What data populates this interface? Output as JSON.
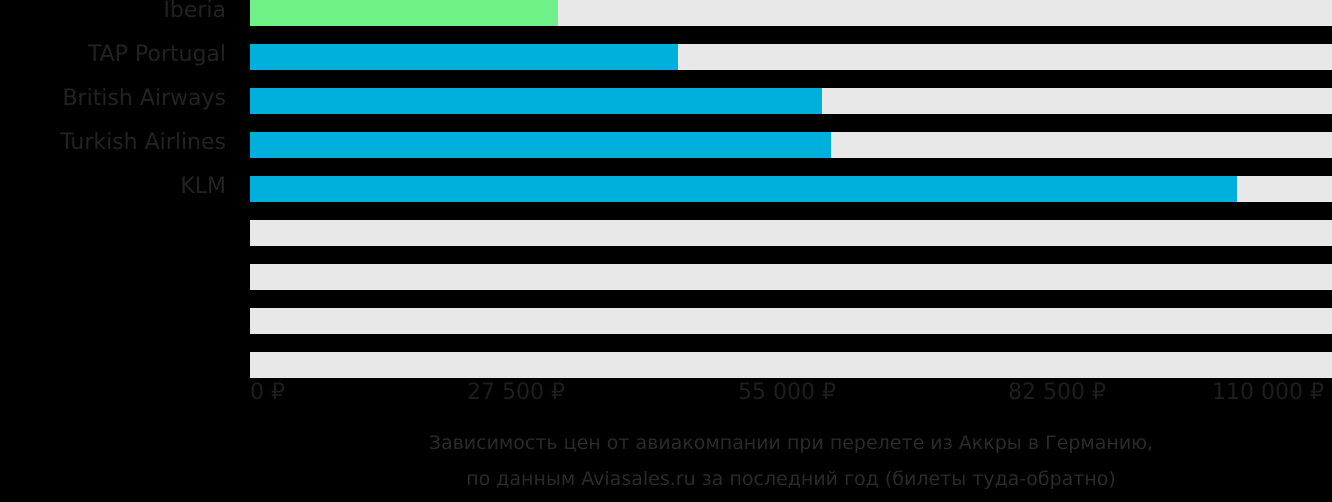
{
  "chart_data": {
    "type": "bar",
    "orientation": "horizontal",
    "categories": [
      "Iberia",
      "TAP Portugal",
      "British Airways",
      "Turkish Airlines",
      "KLM",
      "",
      "",
      "",
      ""
    ],
    "values": [
      31300,
      43500,
      58150,
      59070,
      100340,
      null,
      null,
      null,
      null
    ],
    "highlight_index": 0,
    "colors": {
      "highlight": "#6ef287",
      "default": "#00b0dc",
      "track": "#e8e8e8",
      "background": "#000000"
    },
    "xlim": [
      0,
      110000
    ],
    "xticks": [
      0,
      27500,
      55000,
      82500,
      110000
    ],
    "xtick_labels": [
      "0 ₽",
      "27 500 ₽",
      "55 000 ₽",
      "82 500 ₽",
      "110 000 ₽"
    ],
    "grid": false,
    "legend": null,
    "caption": [
      "Зависимость цен от авиакомпании при перелете из Аккры в Германию,",
      "по данным Aviasales.ru за последний год (билеты туда-обратно)"
    ]
  },
  "rows": [
    {
      "label": "Iberia"
    },
    {
      "label": "TAP Portugal"
    },
    {
      "label": "British Airways"
    },
    {
      "label": "Turkish Airlines"
    },
    {
      "label": "KLM"
    },
    {
      "label": ""
    },
    {
      "label": ""
    },
    {
      "label": ""
    },
    {
      "label": ""
    }
  ],
  "axis": {
    "ticks": [
      "0 ₽",
      "27 500 ₽",
      "55 000 ₽",
      "82 500 ₽",
      "110 000 ₽"
    ]
  },
  "caption": {
    "line1": "Зависимость цен от авиакомпании при перелете из Аккры в Германию,",
    "line2": "по данным Aviasales.ru за последний год (билеты туда-обратно)"
  }
}
